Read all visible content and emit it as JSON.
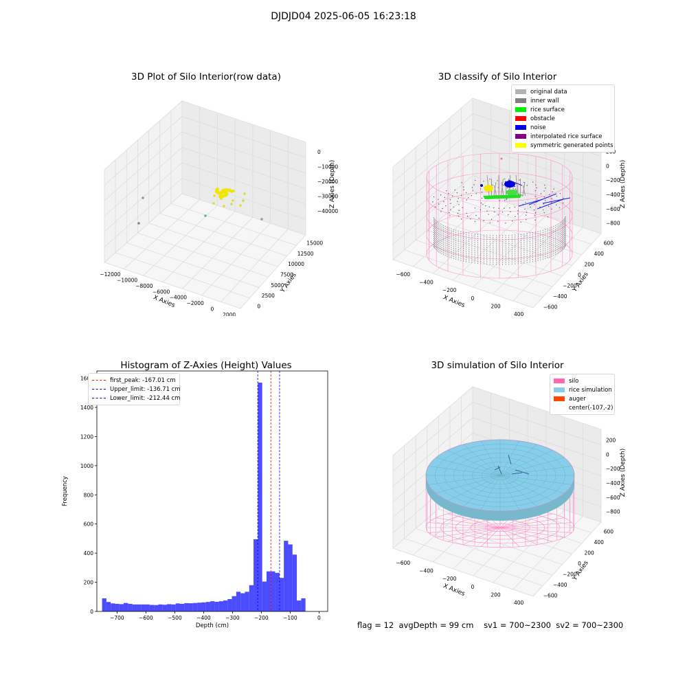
{
  "figure": {
    "suptitle": "DJDJD04 2025-06-05 16:23:18"
  },
  "panels": {
    "raw": {
      "title": "3D Plot of Silo Interior(row data)",
      "xlabel": "X Axies",
      "ylabel": "Y Axies",
      "zlabel": "Z Axies (Depth)",
      "xticks": [
        "−12000",
        "−10000",
        "−8000",
        "−6000",
        "−4000",
        "−2000",
        "0",
        "2000"
      ],
      "yticks": [
        "0",
        "2500",
        "5000",
        "7500",
        "10000",
        "12500",
        "15000"
      ],
      "zticks": [
        "0",
        "−10000",
        "−20000",
        "−30000",
        "−40000"
      ]
    },
    "classify": {
      "title": "3D classify of Silo Interior",
      "xlabel": "X Axies",
      "ylabel": "Y Axies",
      "zlabel": "Z Axies (Depth)",
      "xticks": [
        "−600",
        "−400",
        "−200",
        "0",
        "200",
        "400"
      ],
      "yticks": [
        "−600",
        "−400",
        "−200",
        "0",
        "200",
        "400",
        "600"
      ],
      "zticks": [
        "200",
        "0",
        "−200",
        "−400",
        "−600",
        "−800"
      ],
      "legend": [
        {
          "label": "original data",
          "color": "#b3b3b3"
        },
        {
          "label": "inner wall",
          "color": "#808080"
        },
        {
          "label": "rice surface",
          "color": "#00ee00"
        },
        {
          "label": "obstacle",
          "color": "#ff0000"
        },
        {
          "label": "noise",
          "color": "#0000ee"
        },
        {
          "label": "interpolated rice surface",
          "color": "#800080"
        },
        {
          "label": "symmetric generated points",
          "color": "#ffff00"
        }
      ]
    },
    "simulation": {
      "title": "3D simulation of Silo Interior",
      "xlabel": "X Axies",
      "ylabel": "Y Axies",
      "zlabel": "Z Axies (Depth)",
      "xticks": [
        "−600",
        "−400",
        "−200",
        "0",
        "200",
        "400"
      ],
      "yticks": [
        "−600",
        "−400",
        "−200",
        "0",
        "200",
        "400",
        "600"
      ],
      "zticks": [
        "200",
        "0",
        "−200",
        "−400",
        "−600",
        "−800"
      ],
      "legend": [
        {
          "label": "silo",
          "color": "#ff69b4"
        },
        {
          "label": "rice simulation",
          "color": "#87ceeb"
        },
        {
          "label": "auger",
          "color": "#ff4500"
        },
        {
          "label": "center(-107,-2)",
          "color": ""
        }
      ]
    }
  },
  "footer": {
    "flag": "flag = 12",
    "avg_depth": "avgDepth = 99 cm",
    "sv1": "sv1 = 700~2300",
    "sv2": "sv2 = 700~2300"
  },
  "chart_data": [
    {
      "type": "scatter",
      "title": "3D Plot of Silo Interior(row data)",
      "xlabel": "X Axies",
      "ylabel": "Y Axies",
      "zlabel": "Z Axies (Depth)",
      "xlim": [
        -12500,
        2500
      ],
      "ylim": [
        -1000,
        16000
      ],
      "zlim": [
        -45000,
        2000
      ]
    },
    {
      "type": "scatter",
      "title": "3D classify of Silo Interior",
      "xlabel": "X Axies",
      "ylabel": "Y Axies",
      "zlabel": "Z Axies (Depth)",
      "xlim": [
        -700,
        500
      ],
      "ylim": [
        -650,
        650
      ],
      "zlim": [
        -900,
        250
      ]
    },
    {
      "type": "bar",
      "title": "Histogram of Z-Axies (Height) Values",
      "xlabel": "Depth (cm)",
      "ylabel": "Frequency",
      "xlim": [
        -770,
        30
      ],
      "ylim": [
        0,
        1650
      ],
      "xticks": [
        -700,
        -600,
        -500,
        -400,
        -300,
        -200,
        -100,
        0
      ],
      "yticks": [
        0,
        200,
        400,
        600,
        800,
        1000,
        1200,
        1400,
        1600
      ],
      "bar_color": "#0000ff",
      "bin_start": -752,
      "bin_width": 15,
      "values": [
        90,
        65,
        55,
        52,
        50,
        58,
        52,
        48,
        48,
        48,
        48,
        45,
        44,
        48,
        46,
        50,
        48,
        55,
        52,
        57,
        56,
        58,
        60,
        62,
        65,
        70,
        66,
        70,
        75,
        85,
        105,
        135,
        125,
        135,
        180,
        495,
        1570,
        205,
        275,
        275,
        265,
        230,
        485,
        460,
        390,
        75,
        90
      ],
      "vlines": [
        {
          "label": "first_peak: -167.01 cm",
          "x": -167.01,
          "color": "#ff0000"
        },
        {
          "label": "Upper_limit: -136.71 cm",
          "x": -136.71,
          "color": "#0000ff"
        },
        {
          "label": "Lower_limit: -212.44 cm",
          "x": -212.44,
          "color": "#0000ff"
        }
      ]
    },
    {
      "type": "area",
      "title": "3D simulation of Silo Interior",
      "xlabel": "X Axies",
      "ylabel": "Y Axies",
      "zlabel": "Z Axies (Depth)",
      "xlim": [
        -700,
        500
      ],
      "ylim": [
        -650,
        650
      ],
      "zlim": [
        -900,
        250
      ]
    }
  ]
}
